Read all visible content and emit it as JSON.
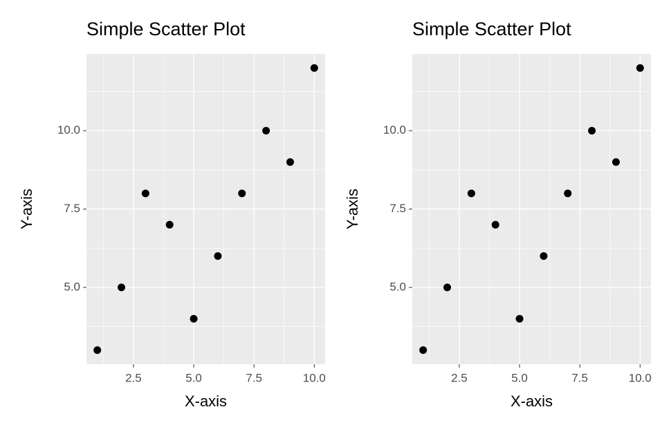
{
  "chart_data": [
    {
      "type": "scatter",
      "title": "Simple Scatter Plot",
      "x_label": "X-axis",
      "y_label": "Y-axis",
      "x": [
        1,
        2,
        3,
        4,
        5,
        6,
        7,
        8,
        9,
        10
      ],
      "values": [
        3,
        5,
        8,
        7,
        4,
        6,
        8,
        10,
        9,
        12
      ],
      "color": "#000000",
      "xlim": [
        0.55,
        10.45
      ],
      "ylim": [
        2.55,
        12.45
      ],
      "xticks": [
        2.5,
        {
          "value": 5,
          "label": "5.0"
        },
        7.5,
        {
          "value": 10,
          "label": "10.0"
        }
      ],
      "yticks": [
        {
          "value": 5,
          "label": "5.0"
        },
        7.5,
        {
          "value": 10,
          "label": "10.0"
        }
      ],
      "xminor": [
        1.25,
        3.75,
        6.25,
        8.75
      ],
      "yminor": [
        3.75,
        6.25,
        8.75,
        11.25
      ],
      "grid": true
    },
    {
      "type": "scatter",
      "title": "Simple Scatter Plot",
      "x_label": "X-axis",
      "y_label": "Y-axis",
      "x": [
        1,
        2,
        3,
        4,
        5,
        6,
        7,
        8,
        9,
        10
      ],
      "values": [
        3,
        5,
        8,
        7,
        4,
        6,
        8,
        10,
        9,
        12
      ],
      "color": "#000000",
      "xlim": [
        0.55,
        10.45
      ],
      "ylim": [
        2.55,
        12.45
      ],
      "xticks": [
        2.5,
        {
          "value": 5,
          "label": "5.0"
        },
        7.5,
        {
          "value": 10,
          "label": "10.0"
        }
      ],
      "yticks": [
        {
          "value": 5,
          "label": "5.0"
        },
        7.5,
        {
          "value": 10,
          "label": "10.0"
        }
      ],
      "xminor": [
        1.25,
        3.75,
        6.25,
        8.75
      ],
      "yminor": [
        3.75,
        6.25,
        8.75,
        11.25
      ],
      "grid": true
    }
  ]
}
